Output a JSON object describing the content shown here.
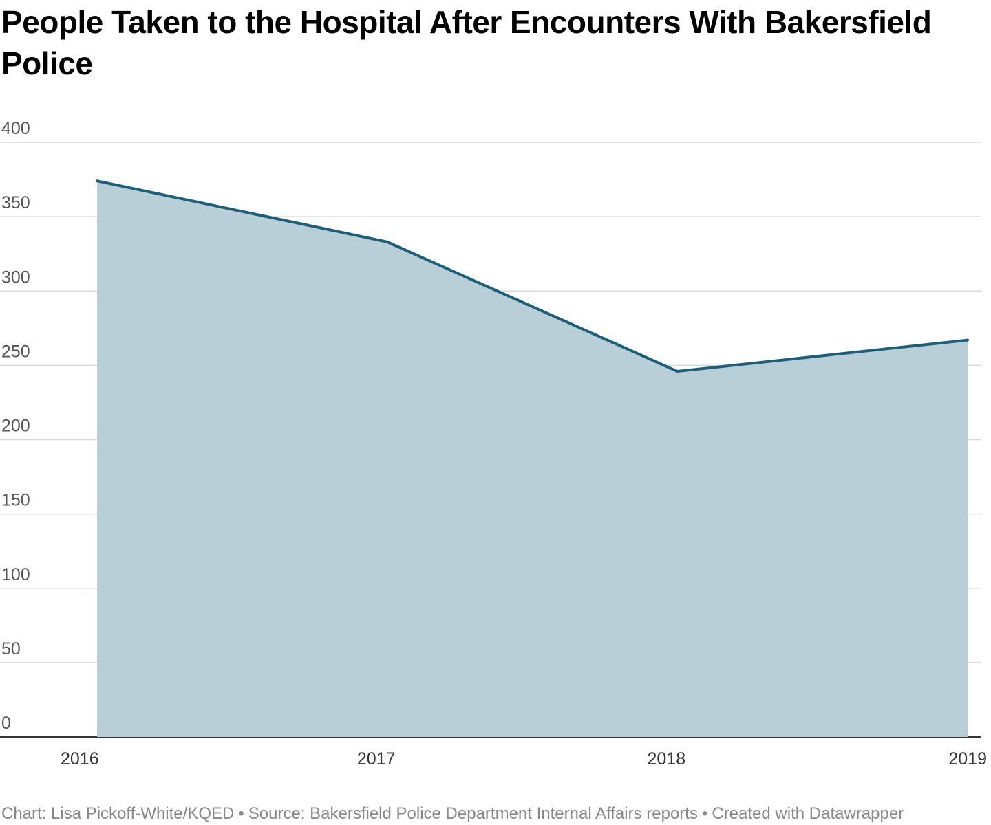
{
  "chart_data": {
    "type": "area",
    "title": "People Taken to the Hospital After Encounters With Bakersfield Police",
    "categories": [
      "2016",
      "2017",
      "2018",
      "2019"
    ],
    "series": [
      {
        "name": "People taken to the hospital",
        "values": [
          374,
          333,
          246,
          267
        ]
      }
    ],
    "xlabel": "",
    "ylabel": "",
    "ylim": [
      0,
      400
    ],
    "yticks": [
      0,
      50,
      100,
      150,
      200,
      250,
      300,
      350,
      400
    ],
    "grid": true,
    "legend": "none",
    "colors": {
      "line": "#1d5f7a",
      "fill": "#b8cfd7",
      "grid": "#d5d5d5",
      "baseline": "#333333"
    }
  },
  "footer": {
    "credit": "Chart: Lisa Pickoff-White/KQED",
    "separator": "•",
    "source": "Source: Bakersfield Police Department Internal Affairs reports",
    "tool": "Created with Datawrapper"
  }
}
